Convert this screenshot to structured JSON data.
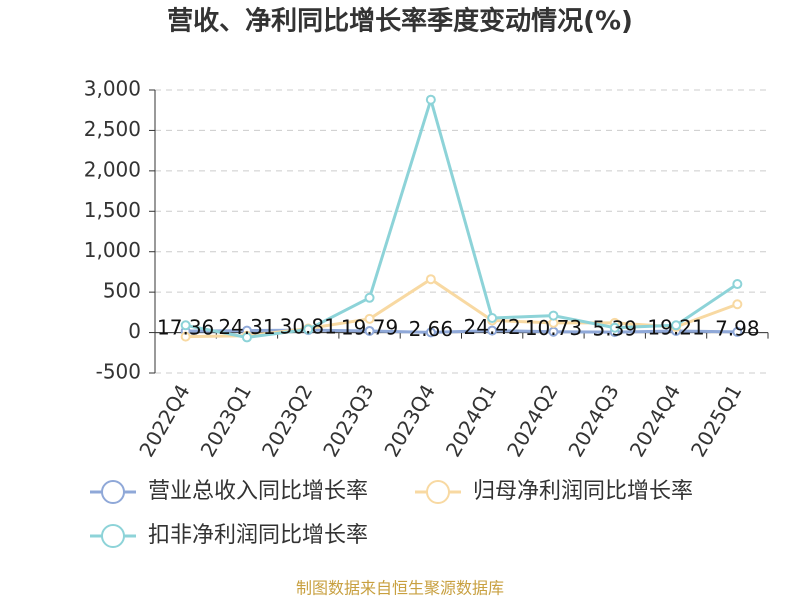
{
  "chart_data": {
    "type": "line",
    "title": "营收、净利同比增长率季度变动情况(%)",
    "source": "制图数据来自恒生聚源数据库",
    "categories": [
      "2022Q4",
      "2023Q1",
      "2023Q2",
      "2023Q3",
      "2023Q4",
      "2024Q1",
      "2024Q2",
      "2024Q3",
      "2024Q4",
      "2025Q1"
    ],
    "series": [
      {
        "name": "营业总收入同比增长率",
        "color": "#8fa8d8",
        "values": [
          17.36,
          24.31,
          30.81,
          19.79,
          2.66,
          24.42,
          10.73,
          5.39,
          19.21,
          7.98
        ]
      },
      {
        "name": "归母净利润同比增长率",
        "color": "#f8d9a2",
        "values": [
          -50,
          -40,
          50,
          170,
          660,
          150,
          120,
          120,
          70,
          350
        ]
      },
      {
        "name": "扣非净利润同比增长率",
        "color": "#8dd3d8",
        "values": [
          90,
          -60,
          40,
          430,
          2880,
          180,
          210,
          60,
          90,
          600
        ]
      }
    ],
    "ylim": [
      -500,
      3000
    ],
    "yticks": [
      -500,
      0,
      500,
      {
        "value": 1000,
        "label": "1,000"
      },
      {
        "value": 1500,
        "label": "1,500"
      },
      {
        "value": 2000,
        "label": "2,000"
      },
      {
        "value": 2500,
        "label": "2,500"
      },
      {
        "value": 3000,
        "label": "3,000"
      }
    ],
    "grid": true
  }
}
